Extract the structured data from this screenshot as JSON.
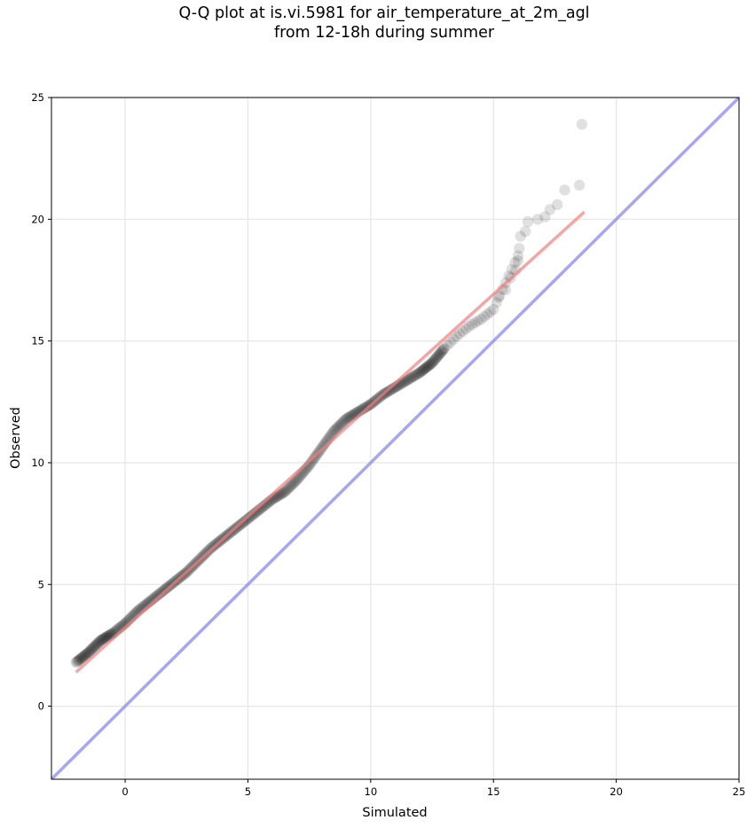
{
  "chart_data": {
    "type": "scatter",
    "title_line1": "Q-Q plot at is.vi.5981 for air_temperature_at_2m_agl",
    "title_line2": "from 12-18h during summer",
    "xlabel": "Simulated",
    "ylabel": "Observed",
    "xlim": [
      -3,
      25
    ],
    "ylim": [
      -3,
      25
    ],
    "xticks": [
      0,
      5,
      10,
      15,
      20,
      25
    ],
    "yticks": [
      0,
      5,
      10,
      15,
      20,
      25
    ],
    "xtick_labels": [
      "0",
      "5",
      "10",
      "15",
      "20",
      "25"
    ],
    "ytick_labels": [
      "0",
      "5",
      "10",
      "15",
      "20",
      "25"
    ],
    "grid": true,
    "colors": {
      "points": "#000000",
      "fit_line": "#f08080",
      "identity_line": "#8080f0",
      "grid": "#e6e6e6"
    },
    "quantile_curve": [
      [
        -2.0,
        1.8
      ],
      [
        -1.5,
        2.2
      ],
      [
        -1.0,
        2.7
      ],
      [
        -0.5,
        3.0
      ],
      [
        0.0,
        3.4
      ],
      [
        0.5,
        3.9
      ],
      [
        1.0,
        4.3
      ],
      [
        1.5,
        4.7
      ],
      [
        2.0,
        5.1
      ],
      [
        2.5,
        5.5
      ],
      [
        3.0,
        6.0
      ],
      [
        3.5,
        6.5
      ],
      [
        4.0,
        6.9
      ],
      [
        4.5,
        7.3
      ],
      [
        5.0,
        7.7
      ],
      [
        5.5,
        8.1
      ],
      [
        6.0,
        8.5
      ],
      [
        6.5,
        8.8
      ],
      [
        7.0,
        9.3
      ],
      [
        7.5,
        9.9
      ],
      [
        8.0,
        10.6
      ],
      [
        8.5,
        11.3
      ],
      [
        9.0,
        11.8
      ],
      [
        9.5,
        12.1
      ],
      [
        10.0,
        12.4
      ],
      [
        10.5,
        12.8
      ],
      [
        11.0,
        13.1
      ],
      [
        11.5,
        13.4
      ],
      [
        12.0,
        13.7
      ],
      [
        12.5,
        14.1
      ],
      [
        13.0,
        14.7
      ],
      [
        13.5,
        15.2
      ],
      [
        14.0,
        15.6
      ],
      [
        14.5,
        15.9
      ],
      [
        15.0,
        16.3
      ],
      [
        15.5,
        17.4
      ],
      [
        16.0,
        18.5
      ]
    ],
    "upper_tail_points": [
      [
        15.2,
        16.8
      ],
      [
        15.5,
        17.1
      ],
      [
        15.7,
        17.6
      ],
      [
        15.9,
        17.9
      ],
      [
        16.0,
        18.3
      ],
      [
        16.05,
        18.8
      ],
      [
        16.1,
        19.3
      ],
      [
        16.3,
        19.5
      ],
      [
        16.4,
        19.9
      ],
      [
        16.8,
        20.0
      ],
      [
        17.1,
        20.1
      ],
      [
        17.3,
        20.4
      ],
      [
        17.6,
        20.6
      ],
      [
        17.9,
        21.2
      ],
      [
        18.5,
        21.4
      ],
      [
        18.6,
        23.9
      ]
    ],
    "fit_line": {
      "x": [
        -2.0,
        18.7
      ],
      "y": [
        1.4,
        20.3
      ]
    },
    "identity_line": {
      "x": [
        -3,
        25
      ],
      "y": [
        -3,
        25
      ]
    }
  }
}
